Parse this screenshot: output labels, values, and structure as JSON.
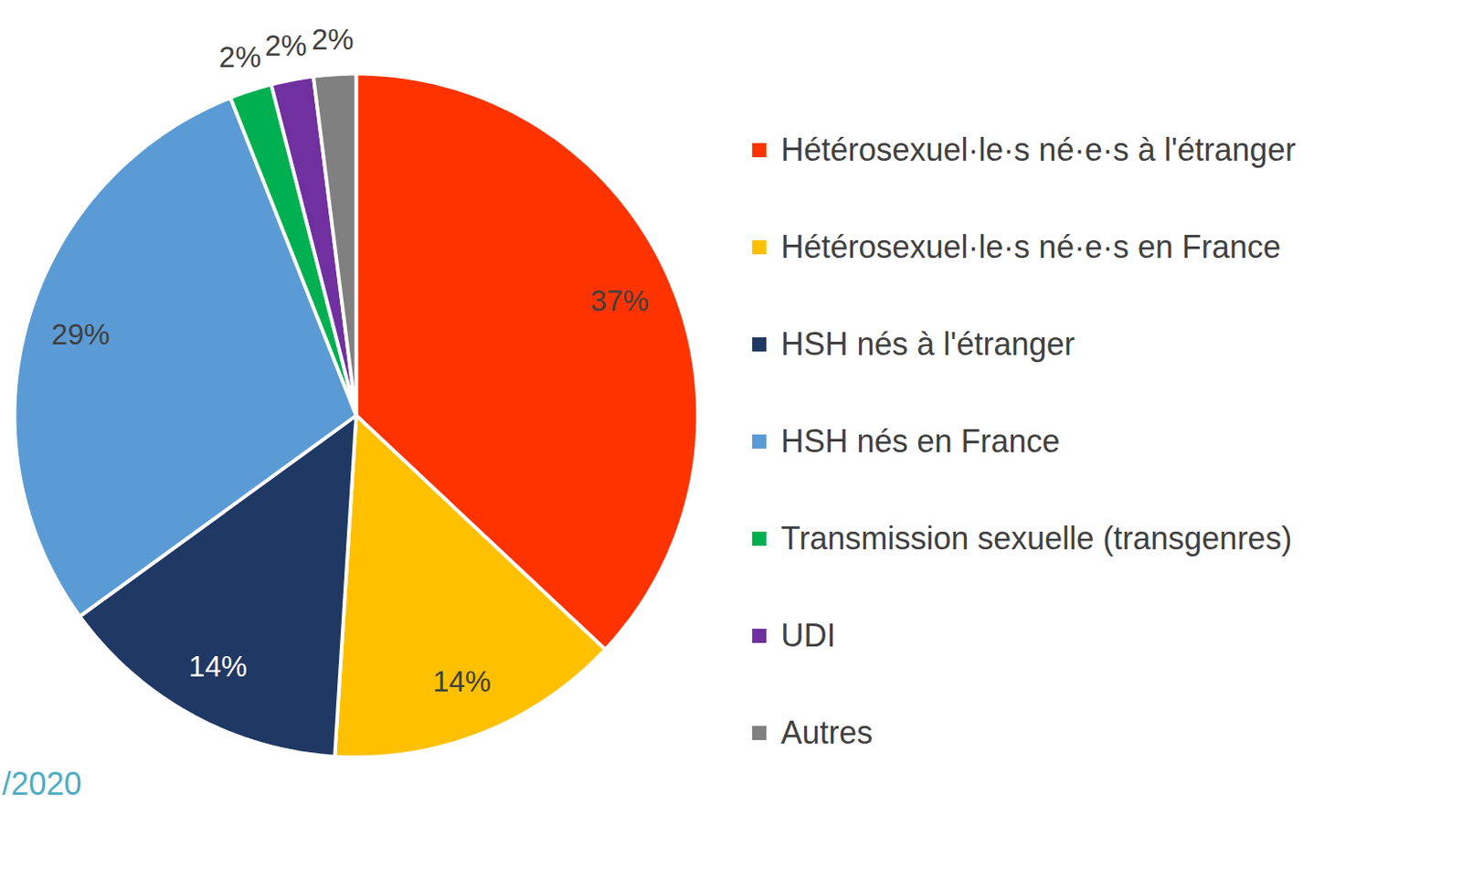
{
  "chart_data": {
    "type": "pie",
    "categories": [
      "Hétérosexuel·le·s né·e·s à l'étranger",
      "Hétérosexuel·le·s né·e·s en France",
      "HSH nés à l'étranger",
      "HSH nés en France",
      "Transmission sexuelle (transgenres)",
      "UDI",
      "Autres"
    ],
    "values": [
      37,
      14,
      14,
      29,
      2,
      2,
      2
    ],
    "value_labels": [
      "37%",
      "14%",
      "14%",
      "29%",
      "2%",
      "2%",
      "2%"
    ],
    "colors": [
      "#FF3300",
      "#FFC000",
      "#203864",
      "#5B9BD5",
      "#00B050",
      "#7030A0",
      "#808080"
    ],
    "data_labels": true,
    "legend": "right",
    "annotation": "/2020"
  }
}
